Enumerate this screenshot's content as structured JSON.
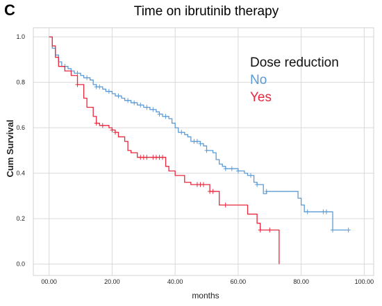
{
  "panel_letter": "C",
  "chart_data": {
    "type": "line",
    "title": "Time on ibrutinib therapy",
    "xlabel": "months",
    "ylabel": "Cum Survival",
    "xlim": [
      -5,
      103
    ],
    "ylim": [
      -0.05,
      1.04
    ],
    "x_ticks": [
      0,
      20,
      40,
      60,
      80,
      100
    ],
    "x_tick_labels": [
      "00.00",
      "20.00",
      "40.00",
      "60.00",
      "80.00",
      "100.00"
    ],
    "y_ticks": [
      0,
      0.2,
      0.4,
      0.6,
      0.8,
      1.0
    ],
    "y_tick_labels": [
      "0.0",
      "0.2",
      "0.4",
      "0.6",
      "0.8",
      "1.0"
    ],
    "grid": true,
    "legend": {
      "title": "Dose reduction",
      "placement": "top-right",
      "title_color": "#111111"
    },
    "series": [
      {
        "name": "No",
        "color": "#5b9bd5",
        "steps": [
          [
            0,
            1.0
          ],
          [
            1,
            0.95
          ],
          [
            2,
            0.92
          ],
          [
            3,
            0.89
          ],
          [
            4,
            0.87
          ],
          [
            6,
            0.86
          ],
          [
            7,
            0.85
          ],
          [
            8,
            0.84
          ],
          [
            10,
            0.83
          ],
          [
            11,
            0.82
          ],
          [
            13,
            0.81
          ],
          [
            14,
            0.79
          ],
          [
            15,
            0.78
          ],
          [
            17,
            0.77
          ],
          [
            18,
            0.76
          ],
          [
            20,
            0.75
          ],
          [
            21,
            0.74
          ],
          [
            23,
            0.73
          ],
          [
            24,
            0.72
          ],
          [
            26,
            0.71
          ],
          [
            28,
            0.7
          ],
          [
            30,
            0.69
          ],
          [
            32,
            0.68
          ],
          [
            34,
            0.67
          ],
          [
            35,
            0.66
          ],
          [
            36,
            0.65
          ],
          [
            38,
            0.64
          ],
          [
            39,
            0.62
          ],
          [
            40,
            0.6
          ],
          [
            41,
            0.58
          ],
          [
            43,
            0.57
          ],
          [
            44,
            0.56
          ],
          [
            45,
            0.54
          ],
          [
            48,
            0.53
          ],
          [
            49,
            0.52
          ],
          [
            50,
            0.5
          ],
          [
            52,
            0.49
          ],
          [
            53,
            0.46
          ],
          [
            54,
            0.44
          ],
          [
            55,
            0.43
          ],
          [
            56,
            0.42
          ],
          [
            60,
            0.41
          ],
          [
            62,
            0.4
          ],
          [
            63,
            0.39
          ],
          [
            65,
            0.36
          ],
          [
            66,
            0.35
          ],
          [
            68,
            0.31
          ],
          [
            69,
            0.32
          ],
          [
            79,
            0.29
          ],
          [
            80,
            0.26
          ],
          [
            81,
            0.23
          ],
          [
            86,
            0.23
          ],
          [
            90,
            0.15
          ],
          [
            95,
            0.15
          ]
        ],
        "censor_x": [
          5,
          9,
          12,
          15,
          16,
          19,
          22,
          25,
          27,
          29,
          31,
          33,
          35,
          37,
          42,
          46,
          47,
          48,
          50,
          56,
          58,
          60,
          64,
          66,
          69,
          82,
          87,
          88,
          90,
          95
        ]
      },
      {
        "name": "Yes",
        "color": "#e8273c",
        "steps": [
          [
            0,
            1.0
          ],
          [
            1,
            0.96
          ],
          [
            2,
            0.91
          ],
          [
            3,
            0.87
          ],
          [
            5,
            0.85
          ],
          [
            7,
            0.83
          ],
          [
            9,
            0.79
          ],
          [
            11,
            0.73
          ],
          [
            12,
            0.69
          ],
          [
            14,
            0.65
          ],
          [
            15,
            0.62
          ],
          [
            16,
            0.61
          ],
          [
            19,
            0.6
          ],
          [
            20,
            0.59
          ],
          [
            21,
            0.58
          ],
          [
            22,
            0.56
          ],
          [
            24,
            0.54
          ],
          [
            25,
            0.5
          ],
          [
            26,
            0.49
          ],
          [
            28,
            0.47
          ],
          [
            37,
            0.43
          ],
          [
            38,
            0.41
          ],
          [
            40,
            0.39
          ],
          [
            43,
            0.36
          ],
          [
            45,
            0.35
          ],
          [
            50,
            0.35
          ],
          [
            51,
            0.32
          ],
          [
            54,
            0.26
          ],
          [
            62,
            0.26
          ],
          [
            63,
            0.22
          ],
          [
            66,
            0.18
          ],
          [
            67,
            0.15
          ],
          [
            71,
            0.15
          ],
          [
            73,
            0.0
          ]
        ],
        "censor_x": [
          9,
          15,
          17,
          20,
          21,
          29,
          30,
          31,
          33,
          34,
          35,
          36,
          47,
          48,
          49,
          51,
          52,
          56,
          67,
          70
        ]
      }
    ]
  }
}
